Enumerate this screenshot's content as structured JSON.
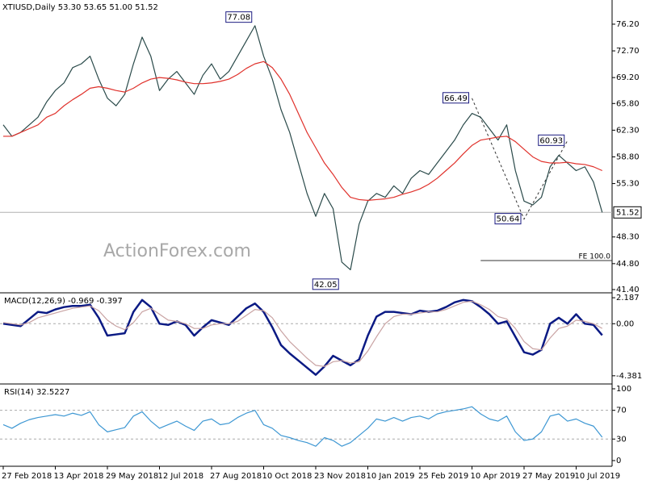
{
  "chart_data": [
    {
      "type": "line",
      "title": "XTIUSD,Daily  53.30 53.65 51.00 51.52",
      "watermark": "ActionForex.com",
      "ylim": [
        41.08,
        79.37
      ],
      "yticks": [
        {
          "value": 41.4,
          "label": "41.40"
        },
        {
          "value": 44.8,
          "label": "44.80"
        },
        {
          "value": 48.3,
          "label": "48.30"
        },
        {
          "value": 55.3,
          "label": "55.30"
        },
        {
          "value": 58.8,
          "label": "58.80"
        },
        {
          "value": 62.3,
          "label": "62.30"
        },
        {
          "value": 65.8,
          "label": "65.80"
        },
        {
          "value": 69.2,
          "label": "69.20"
        },
        {
          "value": 72.7,
          "label": "72.70"
        },
        {
          "value": 76.2,
          "label": "76.20"
        }
      ],
      "last_price": {
        "value": 51.52,
        "label": "51.52"
      },
      "series": [
        {
          "color": "#2a4a4a",
          "values": [
            63,
            61.5,
            62,
            63,
            64,
            66,
            67.5,
            68.5,
            70.5,
            71,
            72,
            69,
            66.5,
            65.5,
            67,
            71,
            74.5,
            72,
            67.5,
            69,
            70,
            68.5,
            67,
            69.5,
            71,
            69,
            70,
            72,
            74,
            76,
            72,
            69,
            65,
            62,
            58,
            54,
            51,
            54,
            52,
            45,
            44,
            50,
            53,
            54,
            53.5,
            55,
            54,
            56,
            57,
            56.5,
            58,
            59.5,
            61,
            63,
            64.5,
            64,
            62.5,
            61,
            63,
            57,
            53,
            52.5,
            53.5,
            57.5,
            59,
            58,
            57,
            57.5,
            55.5,
            51.52
          ]
        },
        {
          "color": "#e0312b",
          "values": [
            61.5,
            61.5,
            62,
            62.5,
            63,
            64,
            64.5,
            65.5,
            66.3,
            67,
            67.8,
            68,
            67.8,
            67.5,
            67.3,
            67.8,
            68.5,
            69,
            69.2,
            69.1,
            68.9,
            68.6,
            68.4,
            68.4,
            68.5,
            68.7,
            69,
            69.6,
            70.4,
            71,
            71.3,
            70.5,
            69,
            67,
            64.5,
            62,
            60,
            58,
            56.5,
            54.8,
            53.5,
            53.2,
            53.1,
            53.2,
            53.3,
            53.5,
            53.9,
            54.2,
            54.6,
            55.2,
            56,
            57,
            58,
            59.2,
            60.3,
            61,
            61.2,
            61.4,
            61.5,
            60.8,
            59.8,
            58.8,
            58.2,
            58,
            58,
            58.1,
            57.9,
            57.8,
            57.5,
            57
          ]
        }
      ],
      "annotations": [
        {
          "label": "77.08",
          "index": 29,
          "value": 77.08
        },
        {
          "label": "42.05",
          "index": 39,
          "value": 42.05
        },
        {
          "label": "66.49",
          "index": 54,
          "value": 66.49
        },
        {
          "label": "50.64",
          "index": 60,
          "value": 50.64
        },
        {
          "label": "60.93",
          "index": 65,
          "value": 60.93
        }
      ],
      "fe_line": {
        "label": "FE 100.0",
        "value": 45.21,
        "from_index": 55
      }
    },
    {
      "type": "line",
      "title": "MACD(12,26,9) -0.969 -0.397",
      "ylim": [
        -5.003,
        2.533
      ],
      "yticks": [
        -4.381,
        {
          "value": 0,
          "label": "0.00"
        },
        2.187
      ],
      "series": [
        {
          "color": "#0b1a84",
          "values": [
            0,
            -0.1,
            -0.2,
            0.4,
            1,
            0.9,
            1.2,
            1.4,
            1.5,
            1.5,
            1.6,
            0.5,
            -1,
            -0.9,
            -0.8,
            1,
            2,
            1.4,
            0,
            -0.1,
            0.2,
            -0.1,
            -1,
            -0.3,
            0.3,
            0.1,
            -0.1,
            0.6,
            1.3,
            1.7,
            1,
            -0.3,
            -1.8,
            -2.5,
            -3.1,
            -3.7,
            -4.3,
            -3.6,
            -2.7,
            -3.1,
            -3.5,
            -3,
            -1,
            0.6,
            1,
            1,
            0.9,
            0.8,
            1.1,
            1,
            1.1,
            1.4,
            1.8,
            2,
            1.9,
            1.4,
            0.8,
            0,
            0.2,
            -1.1,
            -2.4,
            -2.6,
            -2.2,
            0,
            0.5,
            0,
            0.8,
            0,
            -0.1,
            -0.969
          ]
        },
        {
          "color": "#c9a3a3",
          "values": [
            0.1,
            0,
            -0.1,
            0.1,
            0.5,
            0.7,
            0.9,
            1.1,
            1.3,
            1.4,
            1.5,
            1.1,
            0.3,
            -0.2,
            -0.5,
            0.1,
            1,
            1.3,
            0.8,
            0.3,
            0.2,
            0,
            -0.4,
            -0.4,
            -0.1,
            0,
            0,
            0.2,
            0.7,
            1.2,
            1.1,
            0.5,
            -0.6,
            -1.5,
            -2.2,
            -2.9,
            -3.5,
            -3.6,
            -3.2,
            -3.1,
            -3.3,
            -3.2,
            -2.3,
            -1.1,
            0,
            0.6,
            0.8,
            0.8,
            0.9,
            1,
            1,
            1.2,
            1.5,
            1.8,
            1.9,
            1.6,
            1.2,
            0.6,
            0.4,
            -0.4,
            -1.5,
            -2.1,
            -2.2,
            -1.2,
            -0.4,
            -0.2,
            0.3,
            0.2,
            0,
            -0.397
          ]
        }
      ]
    },
    {
      "type": "line",
      "title": "RSI(14) 32.5227",
      "ylim": [
        -7.9,
        105.6
      ],
      "yticks": [
        0,
        30,
        70,
        100
      ],
      "categories": [
        "27 Feb 2018",
        null,
        null,
        null,
        null,
        null,
        "13 Apr 2018",
        null,
        null,
        null,
        null,
        null,
        "29 May 2018",
        null,
        null,
        null,
        null,
        null,
        "12 Jul 2018",
        null,
        null,
        null,
        null,
        null,
        "27 Aug 2018",
        null,
        null,
        null,
        null,
        null,
        "10 Oct 2018",
        null,
        null,
        null,
        null,
        null,
        "23 Nov 2018",
        null,
        null,
        null,
        null,
        null,
        "10 Jan 2019",
        null,
        null,
        null,
        null,
        null,
        "25 Feb 2019",
        null,
        null,
        null,
        null,
        null,
        "10 Apr 2019",
        null,
        null,
        null,
        null,
        null,
        "27 May 2019",
        null,
        null,
        null,
        null,
        null,
        "10 Jul 2019",
        null,
        null,
        null
      ],
      "series": [
        {
          "color": "#3d97d3",
          "values": [
            50,
            45,
            52,
            57,
            60,
            62,
            64,
            62,
            66,
            63,
            68,
            50,
            40,
            43,
            46,
            62,
            68,
            55,
            45,
            50,
            55,
            48,
            42,
            55,
            58,
            50,
            52,
            60,
            66,
            70,
            50,
            45,
            35,
            32,
            28,
            25,
            20,
            32,
            28,
            20,
            25,
            35,
            45,
            58,
            55,
            60,
            55,
            60,
            62,
            58,
            65,
            68,
            70,
            72,
            75,
            65,
            58,
            55,
            62,
            40,
            28,
            30,
            40,
            62,
            65,
            55,
            58,
            52,
            48,
            32.5227
          ]
        }
      ]
    }
  ]
}
